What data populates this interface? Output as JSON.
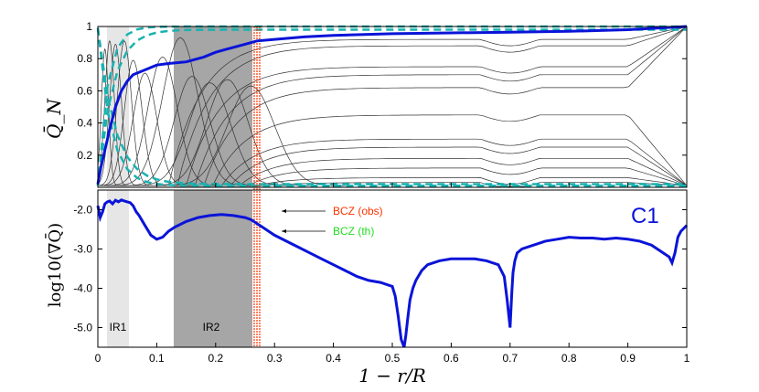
{
  "chart_data": [
    {
      "type": "line",
      "panel": "top",
      "ylabel": "Q̄_N",
      "ylim": [
        0,
        1
      ],
      "yticks": [
        "0.2",
        "0.4",
        "0.6",
        "0.8",
        "1"
      ],
      "series": [
        {
          "name": "blue",
          "color": "#0a14d8",
          "x": [
            0,
            0.005,
            0.01,
            0.015,
            0.02,
            0.03,
            0.04,
            0.05,
            0.06,
            0.08,
            0.1,
            0.12,
            0.15,
            0.18,
            0.2,
            0.22,
            0.25,
            0.27,
            0.3,
            0.35,
            0.4,
            0.5,
            0.6,
            0.7,
            0.8,
            0.9,
            0.95,
            1.0
          ],
          "y": [
            0.02,
            0.12,
            0.2,
            0.28,
            0.36,
            0.5,
            0.6,
            0.66,
            0.7,
            0.73,
            0.76,
            0.77,
            0.78,
            0.81,
            0.84,
            0.86,
            0.89,
            0.91,
            0.92,
            0.935,
            0.945,
            0.955,
            0.96,
            0.965,
            0.97,
            0.98,
            0.99,
            1.0
          ]
        }
      ]
    },
    {
      "type": "line",
      "panel": "bottom",
      "title": "C1",
      "xlabel": "1 − r/R",
      "ylabel": "log10(∇Q̄)",
      "xlim": [
        0,
        1
      ],
      "ylim": [
        -5.5,
        -1.5
      ],
      "xticks": [
        "0",
        "0.1",
        "0.2",
        "0.3",
        "0.4",
        "0.5",
        "0.6",
        "0.7",
        "0.8",
        "0.9",
        "1"
      ],
      "yticks": [
        "-2.0",
        "-3.0",
        "-4.0",
        "-5.0"
      ],
      "shaded_regions": [
        {
          "label": "IR1",
          "x0": 0.017,
          "x1": 0.052
        },
        {
          "label": "IR2",
          "x0": 0.13,
          "x1": 0.262
        }
      ],
      "annotations": [
        {
          "text": "BCZ (obs)",
          "color": "#ff3300",
          "x": 0.273
        },
        {
          "text": "BCZ (th)",
          "color": "#22dd22",
          "x": 0.268
        }
      ],
      "series": [
        {
          "name": "log10 gradient",
          "color": "#0a14d8",
          "x": [
            0,
            0.004,
            0.008,
            0.012,
            0.016,
            0.02,
            0.025,
            0.03,
            0.035,
            0.04,
            0.045,
            0.05,
            0.055,
            0.06,
            0.065,
            0.07,
            0.08,
            0.09,
            0.1,
            0.11,
            0.12,
            0.13,
            0.15,
            0.17,
            0.19,
            0.21,
            0.23,
            0.25,
            0.26,
            0.27,
            0.28,
            0.29,
            0.3,
            0.32,
            0.34,
            0.36,
            0.38,
            0.4,
            0.42,
            0.44,
            0.46,
            0.48,
            0.5,
            0.505,
            0.51,
            0.515,
            0.52,
            0.523,
            0.526,
            0.53,
            0.535,
            0.54,
            0.55,
            0.56,
            0.58,
            0.6,
            0.62,
            0.64,
            0.66,
            0.68,
            0.69,
            0.695,
            0.7,
            0.703,
            0.705,
            0.708,
            0.712,
            0.72,
            0.74,
            0.76,
            0.78,
            0.8,
            0.82,
            0.84,
            0.86,
            0.88,
            0.9,
            0.92,
            0.94,
            0.96,
            0.97,
            0.975,
            0.98,
            0.985,
            0.99,
            1.0
          ],
          "y": [
            -1.9,
            -2.2,
            -2.05,
            -1.85,
            -1.8,
            -1.78,
            -1.85,
            -1.76,
            -1.8,
            -1.75,
            -1.78,
            -1.8,
            -1.82,
            -1.9,
            -2.05,
            -2.15,
            -2.4,
            -2.65,
            -2.75,
            -2.7,
            -2.55,
            -2.45,
            -2.3,
            -2.2,
            -2.15,
            -2.12,
            -2.15,
            -2.2,
            -2.25,
            -2.35,
            -2.45,
            -2.55,
            -2.65,
            -2.8,
            -2.95,
            -3.1,
            -3.25,
            -3.4,
            -3.55,
            -3.7,
            -3.8,
            -3.85,
            -3.95,
            -4.2,
            -4.7,
            -5.3,
            -5.5,
            -5.2,
            -4.8,
            -4.3,
            -4.0,
            -3.8,
            -3.55,
            -3.4,
            -3.3,
            -3.25,
            -3.25,
            -3.25,
            -3.3,
            -3.4,
            -3.7,
            -4.3,
            -5.0,
            -4.1,
            -3.6,
            -3.3,
            -3.1,
            -3.0,
            -2.9,
            -2.8,
            -2.75,
            -2.7,
            -2.72,
            -2.72,
            -2.75,
            -2.72,
            -2.75,
            -2.8,
            -2.9,
            -3.1,
            -3.2,
            -3.35,
            -3.1,
            -2.7,
            -2.55,
            -2.4
          ]
        }
      ]
    }
  ]
}
